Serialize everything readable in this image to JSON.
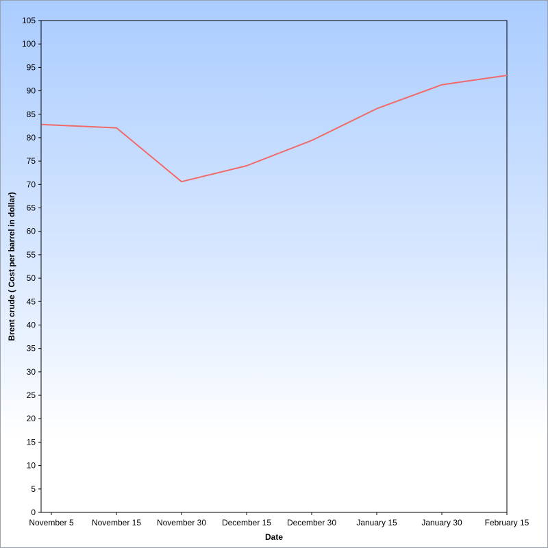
{
  "chart_data": {
    "type": "line",
    "title": "",
    "xlabel": "Date",
    "ylabel": "Brent crude ( Cost per barrel in dollar)",
    "categories": [
      "November 5",
      "November 15",
      "November 30",
      "December 15",
      "December 30",
      "January 15",
      "January 30",
      "February 15"
    ],
    "series": [
      {
        "values": [
          82.8,
          82.1,
          70.6,
          74.0,
          79.4,
          86.2,
          91.3,
          93.3
        ],
        "color": "#f06a6a"
      }
    ],
    "ylim": [
      0,
      105
    ],
    "yticks": [
      0,
      5,
      10,
      15,
      20,
      25,
      30,
      35,
      40,
      45,
      50,
      55,
      60,
      65,
      70,
      75,
      80,
      85,
      90,
      95,
      100,
      105
    ],
    "grid": false,
    "legend": "none",
    "background_gradient": [
      "#aaccff",
      "#ffffff"
    ]
  }
}
